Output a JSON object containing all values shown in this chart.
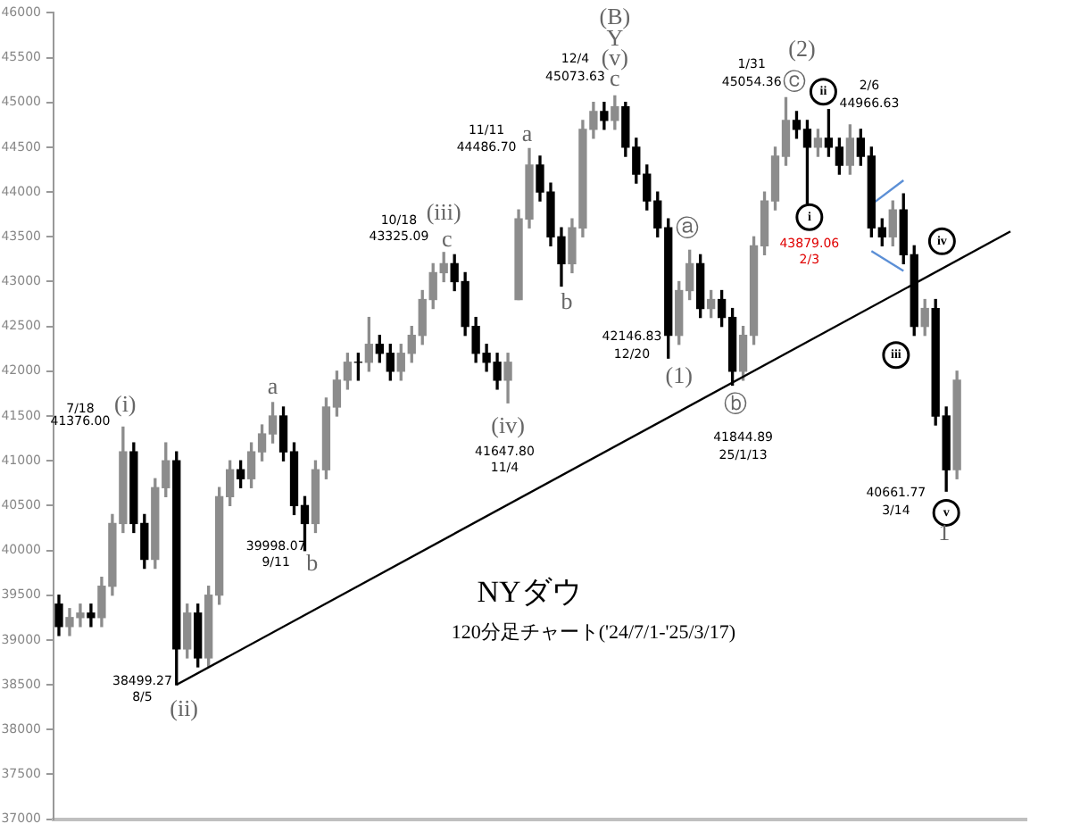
{
  "chart_data": {
    "type": "candlestick",
    "title": "NYダウ",
    "subtitle": "120分足チャート('24/7/1-'25/3/17)",
    "annotations": [
      "7/18",
      "41376.00",
      "(i)",
      "a",
      "38499.27",
      "8/5",
      "(ii)",
      "39998.07",
      "9/11",
      "b",
      "10/18",
      "43325.09",
      "(iii)",
      "c",
      "(iv)",
      "41647.80",
      "11/4",
      "11/11",
      "44486.70",
      "a",
      "b",
      "(B)",
      "Y",
      "(v)",
      "c",
      "12/4",
      "45073.63",
      "ⓐ",
      "42146.83",
      "12/20",
      "(1)",
      "ⓑ",
      "41844.89",
      "25/1/13",
      "(2)",
      "1/31",
      "45054.36",
      "ⓒ",
      "ii",
      "2/6",
      "44966.63",
      "i",
      "43879.06",
      "2/3",
      "iv",
      "iii",
      "40661.77",
      "3/14",
      "v",
      "1"
    ],
    "categories": [
      null,
      null,
      null,
      null,
      null,
      null,
      null,
      null,
      null,
      null,
      null,
      null,
      null,
      null,
      null,
      null,
      null,
      null,
      null,
      null,
      null,
      null,
      null,
      null,
      null,
      null,
      null,
      null,
      null,
      null,
      null,
      null,
      null,
      null,
      null,
      null,
      null,
      null,
      null,
      null,
      null,
      null,
      null,
      null,
      null,
      null,
      null,
      null,
      null,
      null,
      null,
      null,
      null,
      null,
      null,
      null,
      null,
      null,
      null,
      null,
      null,
      null,
      null,
      null,
      null,
      null,
      null,
      null,
      null,
      null,
      null,
      null,
      null,
      null,
      null,
      null,
      null,
      null,
      null,
      null,
      null,
      null,
      null,
      null,
      null,
      null,
      null,
      null,
      null,
      null,
      null
    ],
    "ohlc": [
      [
        39400,
        39500,
        39050,
        39150
      ],
      [
        39150,
        39350,
        39050,
        39250
      ],
      [
        39250,
        39400,
        39150,
        39300
      ],
      [
        39300,
        39400,
        39150,
        39250
      ],
      [
        39250,
        39700,
        39150,
        39600
      ],
      [
        39600,
        40400,
        39500,
        40300
      ],
      [
        40300,
        41376,
        40200,
        41100
      ],
      [
        41100,
        41200,
        40200,
        40300
      ],
      [
        40300,
        40400,
        39800,
        39900
      ],
      [
        39900,
        40800,
        39800,
        40700
      ],
      [
        40700,
        41200,
        40600,
        41000
      ],
      [
        41000,
        41100,
        38499,
        38900
      ],
      [
        38900,
        39400,
        38800,
        39300
      ],
      [
        39300,
        39400,
        38700,
        38800
      ],
      [
        38800,
        39600,
        38700,
        39500
      ],
      [
        39500,
        40700,
        39400,
        40600
      ],
      [
        40600,
        41000,
        40500,
        40900
      ],
      [
        40900,
        41000,
        40700,
        40800
      ],
      [
        40800,
        41200,
        40700,
        41100
      ],
      [
        41100,
        41400,
        41000,
        41300
      ],
      [
        41300,
        41650,
        41200,
        41500
      ],
      [
        41500,
        41600,
        41000,
        41100
      ],
      [
        41100,
        41200,
        40400,
        40500
      ],
      [
        40500,
        40600,
        39998,
        40300
      ],
      [
        40300,
        41000,
        40200,
        40900
      ],
      [
        40900,
        41700,
        40800,
        41600
      ],
      [
        41600,
        42000,
        41500,
        41900
      ],
      [
        41900,
        42200,
        41800,
        42100
      ],
      [
        42100,
        42200,
        41900,
        42100
      ],
      [
        42100,
        42600,
        42000,
        42300
      ],
      [
        42300,
        42400,
        42100,
        42200
      ],
      [
        42200,
        42300,
        41900,
        42000
      ],
      [
        42000,
        42300,
        41900,
        42200
      ],
      [
        42200,
        42500,
        42100,
        42400
      ],
      [
        42400,
        42900,
        42300,
        42800
      ],
      [
        42800,
        43200,
        42700,
        43100
      ],
      [
        43100,
        43325,
        43000,
        43200
      ],
      [
        43200,
        43300,
        42900,
        43000
      ],
      [
        43000,
        43100,
        42400,
        42500
      ],
      [
        42500,
        42600,
        42100,
        42200
      ],
      [
        42200,
        42300,
        42000,
        42100
      ],
      [
        42100,
        42200,
        41800,
        41900
      ],
      [
        41900,
        42200,
        41647,
        42100
      ],
      [
        42800,
        43800,
        42800,
        43700
      ],
      [
        43700,
        44486,
        43600,
        44300
      ],
      [
        44300,
        44400,
        43900,
        44000
      ],
      [
        44000,
        44100,
        43400,
        43500
      ],
      [
        43500,
        43600,
        42950,
        43200
      ],
      [
        43200,
        43700,
        43100,
        43600
      ],
      [
        43600,
        44800,
        43500,
        44700
      ],
      [
        44700,
        45000,
        44600,
        44900
      ],
      [
        44900,
        45000,
        44700,
        44800
      ],
      [
        44800,
        45073,
        44700,
        44950
      ],
      [
        44950,
        45000,
        44400,
        44500
      ],
      [
        44500,
        44600,
        44100,
        44200
      ],
      [
        44200,
        44300,
        43800,
        43900
      ],
      [
        43900,
        44000,
        43500,
        43600
      ],
      [
        43600,
        43700,
        42146,
        42400
      ],
      [
        42400,
        43000,
        42300,
        42900
      ],
      [
        42900,
        43350,
        42800,
        43200
      ],
      [
        43200,
        43300,
        42600,
        42700
      ],
      [
        42700,
        42900,
        42600,
        42800
      ],
      [
        42800,
        42900,
        42500,
        42600
      ],
      [
        42600,
        42700,
        41844,
        42000
      ],
      [
        42000,
        42500,
        41900,
        42400
      ],
      [
        42400,
        43500,
        42300,
        43400
      ],
      [
        43400,
        44000,
        43300,
        43900
      ],
      [
        43900,
        44500,
        43800,
        44400
      ],
      [
        44400,
        45054,
        44300,
        44800
      ],
      [
        44800,
        44900,
        44600,
        44700
      ],
      [
        44700,
        44800,
        43879,
        44500
      ],
      [
        44500,
        44700,
        44400,
        44600
      ],
      [
        44600,
        44920,
        44400,
        44500
      ],
      [
        44500,
        44600,
        44200,
        44300
      ],
      [
        44300,
        44750,
        44200,
        44600
      ],
      [
        44600,
        44700,
        44300,
        44400
      ],
      [
        44400,
        44500,
        43500,
        43600
      ],
      [
        43600,
        43700,
        43400,
        43500
      ],
      [
        43500,
        43900,
        43400,
        43800
      ],
      [
        43800,
        43980,
        43200,
        43300
      ],
      [
        43300,
        43400,
        42400,
        42500
      ],
      [
        42500,
        42800,
        42400,
        42700
      ],
      [
        42700,
        42800,
        41400,
        41500
      ],
      [
        41500,
        41600,
        40661,
        40900
      ],
      [
        40900,
        42000,
        40800,
        41900
      ],
      null,
      null,
      null,
      null,
      null,
      null
    ],
    "colors": [
      "#000000",
      "#8c8c8c",
      "#8c8c8c",
      "#000000",
      "#8c8c8c",
      "#8c8c8c",
      "#8c8c8c",
      "#000000",
      "#000000",
      "#8c8c8c",
      "#8c8c8c",
      "#000000",
      "#8c8c8c",
      "#000000",
      "#8c8c8c",
      "#8c8c8c",
      "#8c8c8c",
      "#000000",
      "#8c8c8c",
      "#8c8c8c",
      "#8c8c8c",
      "#000000",
      "#000000",
      "#000000",
      "#8c8c8c",
      "#8c8c8c",
      "#8c8c8c",
      "#8c8c8c",
      "#000000",
      "#8c8c8c",
      "#000000",
      "#000000",
      "#8c8c8c",
      "#8c8c8c",
      "#8c8c8c",
      "#8c8c8c",
      "#8c8c8c",
      "#000000",
      "#000000",
      "#000000",
      "#000000",
      "#000000",
      "#8c8c8c",
      "#8c8c8c",
      "#8c8c8c",
      "#000000",
      "#000000",
      "#000000",
      "#8c8c8c",
      "#8c8c8c",
      "#8c8c8c",
      "#000000",
      "#8c8c8c",
      "#000000",
      "#000000",
      "#000000",
      "#000000",
      "#000000",
      "#8c8c8c",
      "#8c8c8c",
      "#000000",
      "#8c8c8c",
      "#000000",
      "#000000",
      "#8c8c8c",
      "#8c8c8c",
      "#8c8c8c",
      "#8c8c8c",
      "#8c8c8c",
      "#000000",
      "#000000",
      "#8c8c8c",
      "#000000",
      "#000000",
      "#8c8c8c",
      "#000000",
      "#000000",
      "#000000",
      "#8c8c8c",
      "#000000",
      "#000000",
      "#8c8c8c",
      "#000000",
      "#000000",
      "#8c8c8c",
      null,
      null,
      null,
      null,
      null,
      null
    ],
    "series": [
      {
        "type": "line",
        "color": "#000000",
        "values": [
          null,
          null,
          null,
          null,
          null,
          null,
          null,
          null,
          null,
          null,
          null,
          38500,
          null,
          null,
          null,
          null,
          null,
          null,
          null,
          null,
          null,
          null,
          null,
          null,
          null,
          null,
          null,
          null,
          null,
          null,
          null,
          null,
          null,
          null,
          null,
          null,
          null,
          null,
          null,
          null,
          null,
          null,
          null,
          null,
          null,
          null,
          null,
          null,
          null,
          null,
          null,
          null,
          null,
          null,
          null,
          null,
          null,
          null,
          null,
          null,
          null,
          null,
          null,
          null,
          null,
          null,
          null,
          null,
          null,
          null,
          null,
          null,
          null,
          null,
          null,
          null,
          null,
          null,
          null,
          null,
          null,
          null,
          null,
          null,
          null,
          null,
          null,
          null,
          null,
          43560,
          null
        ]
      },
      {
        "type": "line",
        "color": "#5b8fd6",
        "values": [
          null,
          null,
          null,
          null,
          null,
          null,
          null,
          null,
          null,
          null,
          null,
          null,
          null,
          null,
          null,
          null,
          null,
          null,
          null,
          null,
          null,
          null,
          null,
          null,
          null,
          null,
          null,
          null,
          null,
          null,
          null,
          null,
          null,
          null,
          null,
          null,
          null,
          null,
          null,
          null,
          null,
          null,
          null,
          null,
          null,
          null,
          null,
          null,
          null,
          null,
          null,
          null,
          null,
          null,
          null,
          null,
          null,
          null,
          null,
          null,
          null,
          null,
          null,
          null,
          null,
          null,
          null,
          null,
          null,
          null,
          null,
          null,
          null,
          null,
          null,
          null,
          43860,
          null,
          null,
          44130,
          null,
          null,
          null,
          null,
          null,
          null,
          null,
          null,
          null,
          null,
          null
        ]
      },
      {
        "type": "line",
        "color": "#5b8fd6",
        "values": [
          null,
          null,
          null,
          null,
          null,
          null,
          null,
          null,
          null,
          null,
          null,
          null,
          null,
          null,
          null,
          null,
          null,
          null,
          null,
          null,
          null,
          null,
          null,
          null,
          null,
          null,
          null,
          null,
          null,
          null,
          null,
          null,
          null,
          null,
          null,
          null,
          null,
          null,
          null,
          null,
          null,
          null,
          null,
          null,
          null,
          null,
          null,
          null,
          null,
          null,
          null,
          null,
          null,
          null,
          null,
          null,
          null,
          null,
          null,
          null,
          null,
          null,
          null,
          null,
          null,
          null,
          null,
          null,
          null,
          null,
          null,
          null,
          null,
          null,
          null,
          null,
          43340,
          null,
          null,
          43120,
          null,
          null,
          null,
          null,
          null,
          null,
          null,
          null,
          null,
          null,
          null
        ]
      }
    ],
    "ylim": [
      37000,
      46000
    ],
    "yticks": [
      37000,
      37500,
      38000,
      38500,
      39000,
      39500,
      40000,
      40500,
      41000,
      41500,
      42000,
      42500,
      43000,
      43500,
      44000,
      44500,
      45000,
      45500,
      46000
    ],
    "tick_labels": "y",
    "grid": false,
    "legend": false
  }
}
